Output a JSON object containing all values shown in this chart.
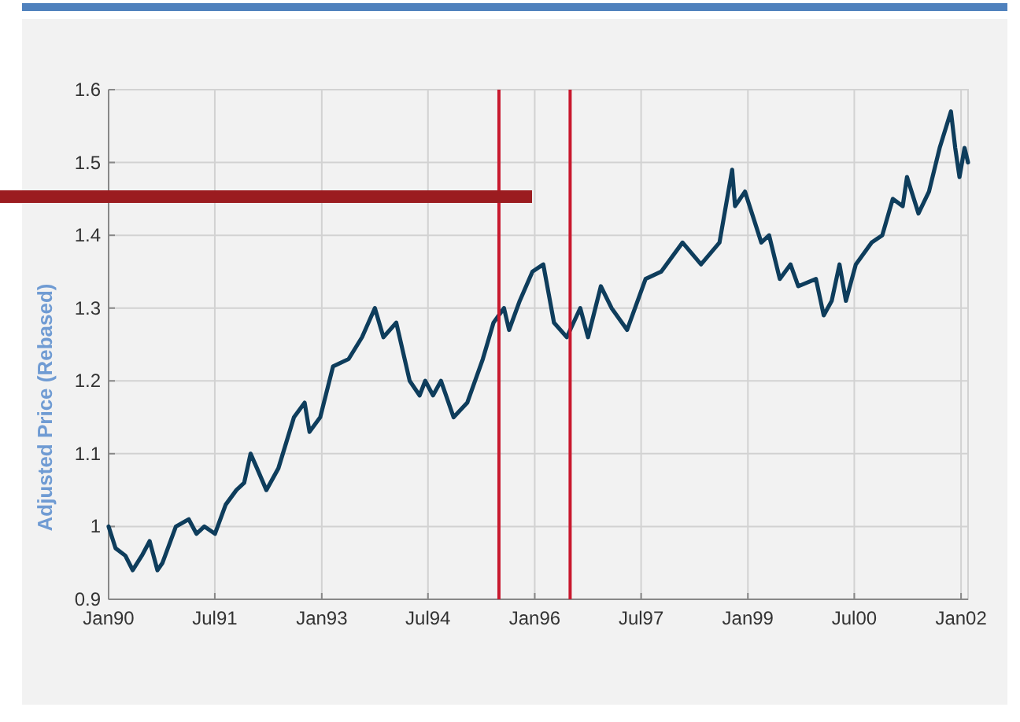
{
  "chart_data": {
    "type": "line",
    "ylabel": "Adjusted Price (Rebased)",
    "xlim": [
      "1990-01-01",
      "2002-02-06"
    ],
    "ylim": [
      0.9,
      1.6
    ],
    "xticks": [
      {
        "value": "1990-01-01",
        "label": "Jan90"
      },
      {
        "value": "1991-07-01",
        "label": "Jul91"
      },
      {
        "value": "1993-01-01",
        "label": "Jan93"
      },
      {
        "value": "1994-07-01",
        "label": "Jul94"
      },
      {
        "value": "1996-01-01",
        "label": "Jan96"
      },
      {
        "value": "1997-07-01",
        "label": "Jul97"
      },
      {
        "value": "1999-01-01",
        "label": "Jan99"
      },
      {
        "value": "2000-07-01",
        "label": "Jul00"
      },
      {
        "value": "2002-01-01",
        "label": "Jan02"
      }
    ],
    "yticks": [
      0.9,
      1,
      1.1,
      1.2,
      1.3,
      1.4,
      1.5,
      1.6
    ],
    "grid": true,
    "line_style": "solid",
    "ref_lines": [
      {
        "axis": "x",
        "value": "1995-07-01",
        "color": "#c8192e"
      },
      {
        "axis": "x",
        "value": "1996-07-01",
        "color": "#c8192e"
      }
    ],
    "series": [
      {
        "color": "#0e3d5c",
        "x": [
          "1990-01-01",
          "1990-02-06",
          "1990-03-28",
          "1990-05-05",
          "1990-06-21",
          "1990-07-31",
          "1990-09-09",
          "1990-10-05",
          "1990-12-13",
          "1991-02-17",
          "1991-03-29",
          "1991-05-08",
          "1991-07-02",
          "1991-08-26",
          "1991-10-20",
          "1991-11-29",
          "1992-01-01",
          "1992-02-03",
          "1992-03-22",
          "1992-05-23",
          "1992-08-11",
          "1992-10-05",
          "1992-10-30",
          "1992-12-24",
          "1993-02-28",
          "1993-05-19",
          "1993-07-27",
          "1993-10-01",
          "1993-11-14",
          "1994-01-19",
          "1994-03-29",
          "1994-05-19",
          "1994-06-17",
          "1994-07-27",
          "1994-09-06",
          "1994-11-10",
          "1995-01-19",
          "1995-04-09",
          "1995-06-03",
          "1995-07-27",
          "1995-08-22",
          "1995-10-16",
          "1995-12-20",
          "1996-02-14",
          "1996-04-09",
          "1996-06-14",
          "1996-08-22",
          "1996-10-01",
          "1996-12-06",
          "1997-01-30",
          "1997-04-20",
          "1997-07-24",
          "1997-10-12",
          "1998-01-30",
          "1998-05-05",
          "1998-08-08",
          "1998-10-12",
          "1998-10-27",
          "1998-12-17",
          "1999-03-11",
          "1999-04-20",
          "1999-06-14",
          "1999-08-08",
          "1999-09-17",
          "1999-12-17",
          "2000-01-26",
          "2000-03-07",
          "2000-04-16",
          "2000-05-19",
          "2000-07-09",
          "2000-09-28",
          "2000-11-22",
          "2001-01-15",
          "2001-03-07",
          "2001-03-29",
          "2001-05-27",
          "2001-07-20",
          "2001-09-13",
          "2001-11-10",
          "2001-12-02",
          "2001-12-24",
          "2002-01-19",
          "2002-02-06"
        ],
        "values": [
          1.0,
          0.97,
          0.96,
          0.94,
          0.96,
          0.98,
          0.94,
          0.95,
          1.0,
          1.01,
          0.99,
          1.0,
          0.99,
          1.03,
          1.05,
          1.06,
          1.1,
          1.08,
          1.05,
          1.08,
          1.15,
          1.17,
          1.13,
          1.15,
          1.22,
          1.23,
          1.26,
          1.3,
          1.26,
          1.28,
          1.2,
          1.18,
          1.2,
          1.18,
          1.2,
          1.15,
          1.17,
          1.23,
          1.28,
          1.3,
          1.27,
          1.31,
          1.35,
          1.36,
          1.28,
          1.26,
          1.3,
          1.26,
          1.33,
          1.3,
          1.27,
          1.34,
          1.35,
          1.39,
          1.36,
          1.39,
          1.49,
          1.44,
          1.46,
          1.39,
          1.4,
          1.34,
          1.36,
          1.33,
          1.34,
          1.29,
          1.31,
          1.36,
          1.31,
          1.36,
          1.39,
          1.4,
          1.45,
          1.44,
          1.48,
          1.43,
          1.46,
          1.52,
          1.57,
          1.52,
          1.48,
          1.52,
          1.5
        ]
      }
    ]
  }
}
